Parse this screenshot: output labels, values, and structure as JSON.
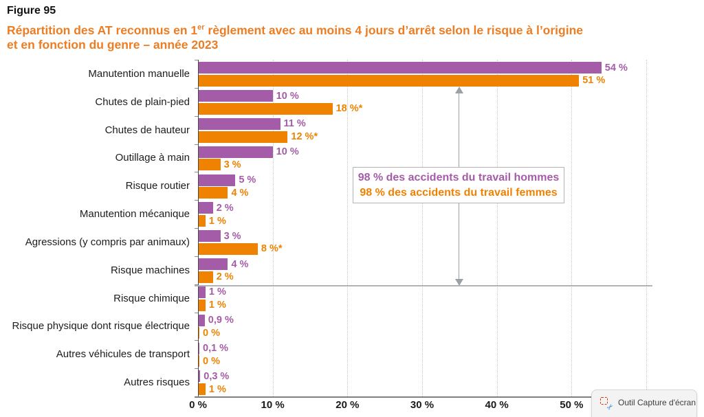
{
  "header": {
    "figure_label": "Figure 95",
    "title_line1_pre": "Répartition des AT reconnus en 1",
    "title_line1_sup": "er",
    "title_line1_post": " règlement avec au moins 4 jours d’arrêt selon le risque à l’origine",
    "title_line2": "et en fonction du genre – année 2023",
    "title_color": "#ec7d23"
  },
  "chart_data": {
    "type": "bar",
    "orientation": "horizontal",
    "title": "Répartition des AT reconnus en 1er règlement avec au moins 4 jours d’arrêt selon le risque à l’origine et en fonction du genre – année 2023",
    "categories": [
      "Manutention manuelle",
      "Chutes de plain-pied",
      "Chutes de hauteur",
      "Outillage à main",
      "Risque routier",
      "Manutention mécanique",
      "Agressions (y compris par animaux)",
      "Risque machines",
      "Risque chimique",
      "Risque physique dont risque électrique",
      "Autres véhicules de transport",
      "Autres risques"
    ],
    "series": [
      {
        "name": "hommes",
        "color": "#a55ca8",
        "values": [
          54,
          10,
          11,
          10,
          5,
          2,
          3,
          4,
          1,
          0.9,
          0.1,
          0.3
        ],
        "labels": [
          "54 %",
          "10 %",
          "11 %",
          "10 %",
          "5 %",
          "2 %",
          "3 %",
          "4 %",
          "1 %",
          "0,9 %",
          "0,1 %",
          "0,3 %"
        ]
      },
      {
        "name": "femmes",
        "color": "#ef8200",
        "values": [
          51,
          18,
          12,
          3,
          4,
          1,
          8,
          2,
          1,
          0,
          0,
          1
        ],
        "labels": [
          "51 %",
          "18 %*",
          "12 %*",
          "3 %",
          "4 %",
          "1 %",
          "8 %*",
          "2 %",
          "1 %",
          "0 %",
          "0 %",
          "1 %"
        ]
      }
    ],
    "xlim": [
      0,
      60
    ],
    "xtick_values": [
      0,
      10,
      20,
      30,
      40,
      50
    ],
    "xtick_labels": [
      "0 %",
      "10 %",
      "20 %",
      "30 %",
      "40 %",
      "50 %"
    ],
    "grid_values": [
      10,
      20,
      30,
      40,
      50,
      60
    ],
    "grid": "vertical-dotted",
    "separator_after_category_index": 7,
    "annotation": {
      "line1": "98 % des accidents du travail hommes",
      "line2": "98 % des accidents du travail femmes"
    }
  },
  "badge": {
    "label": "Outil Capture d'écran"
  }
}
